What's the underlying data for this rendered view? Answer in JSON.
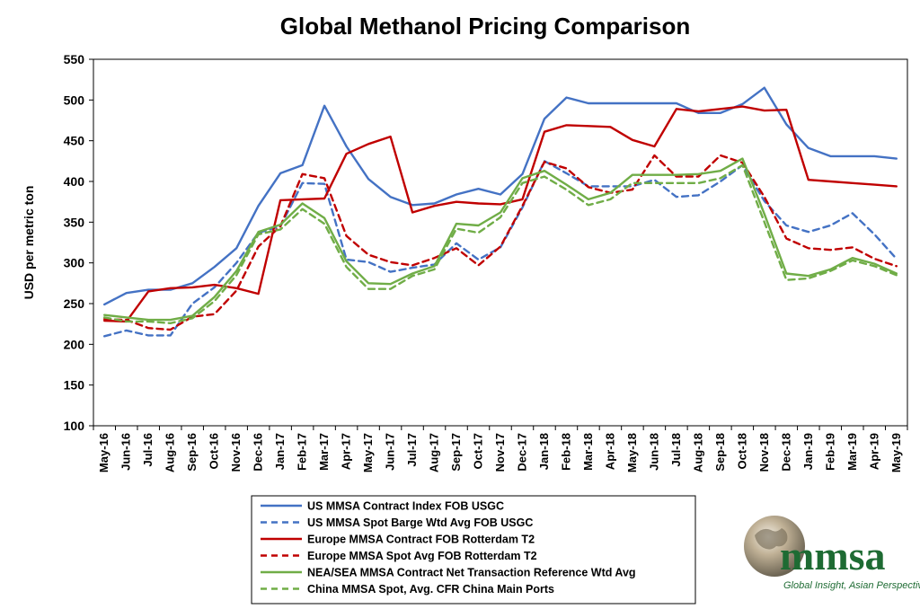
{
  "chart_data": {
    "type": "line",
    "title": "Global Methanol Pricing Comparison",
    "ylabel": "USD per metric ton",
    "xlabel": "",
    "ylim": [
      100,
      550
    ],
    "yticks": [
      100,
      150,
      200,
      250,
      300,
      350,
      400,
      450,
      500,
      550
    ],
    "grid": false,
    "legend_position": "bottom-center",
    "categories": [
      "May-16",
      "Jun-16",
      "Jul-16",
      "Aug-16",
      "Sep-16",
      "Oct-16",
      "Nov-16",
      "Dec-16",
      "Jan-17",
      "Feb-17",
      "Mar-17",
      "Apr-17",
      "May-17",
      "Jun-17",
      "Jul-17",
      "Aug-17",
      "Sep-17",
      "Oct-17",
      "Nov-17",
      "Dec-17",
      "Jan-18",
      "Feb-18",
      "Mar-18",
      "Apr-18",
      "May-18",
      "Jun-18",
      "Jul-18",
      "Aug-18",
      "Sep-18",
      "Oct-18",
      "Nov-18",
      "Dec-18",
      "Jan-19",
      "Feb-19",
      "Mar-19",
      "Apr-19",
      "May-19"
    ],
    "series": [
      {
        "name": "US MMSA Contract Index FOB USGC",
        "color": "#4472c4",
        "dash": "solid",
        "values": [
          249,
          263,
          267,
          267,
          275,
          295,
          318,
          370,
          410,
          420,
          493,
          443,
          403,
          381,
          371,
          373,
          384,
          391,
          384,
          409,
          477,
          503,
          496,
          496,
          496,
          496,
          496,
          484,
          484,
          495,
          515,
          470,
          441,
          431,
          431,
          431,
          428
        ]
      },
      {
        "name": "US MMSA Spot Barge Wtd Avg FOB USGC",
        "color": "#4472c4",
        "dash": "dashed",
        "values": [
          210,
          217,
          211,
          211,
          250,
          270,
          300,
          337,
          345,
          398,
          397,
          304,
          301,
          289,
          294,
          298,
          324,
          304,
          319,
          368,
          425,
          410,
          394,
          394,
          394,
          402,
          381,
          383,
          400,
          420,
          376,
          346,
          338,
          346,
          361,
          335,
          305
        ]
      },
      {
        "name": "Europe MMSA Contract FOB Rotterdam T2",
        "color": "#c00000",
        "dash": "solid",
        "values": [
          229,
          228,
          265,
          269,
          270,
          273,
          269,
          262,
          377,
          378,
          379,
          434,
          446,
          455,
          362,
          370,
          375,
          373,
          372,
          378,
          461,
          469,
          468,
          467,
          451,
          443,
          489,
          486,
          489,
          492,
          487,
          488,
          402,
          400,
          398,
          396,
          394
        ]
      },
      {
        "name": "Europe MMSA Spot Avg FOB Rotterdam T2",
        "color": "#c00000",
        "dash": "dashed",
        "values": [
          231,
          230,
          220,
          218,
          234,
          237,
          266,
          320,
          345,
          409,
          404,
          333,
          310,
          301,
          297,
          306,
          318,
          297,
          320,
          370,
          424,
          416,
          393,
          386,
          390,
          432,
          406,
          406,
          432,
          423,
          381,
          330,
          318,
          316,
          319,
          305,
          296
        ]
      },
      {
        "name": "NEA/SEA MMSA Contract Net Transaction Reference Wtd Avg",
        "color": "#70ad47",
        "dash": "solid",
        "values": [
          236,
          233,
          230,
          230,
          235,
          258,
          290,
          338,
          347,
          373,
          355,
          302,
          275,
          274,
          287,
          296,
          348,
          346,
          362,
          404,
          413,
          396,
          378,
          386,
          408,
          408,
          408,
          409,
          413,
          428,
          360,
          287,
          284,
          292,
          306,
          299,
          287
        ]
      },
      {
        "name": "China MMSA Spot, Avg. CFR China Main Ports",
        "color": "#70ad47",
        "dash": "dashed",
        "values": [
          233,
          228,
          228,
          226,
          232,
          253,
          285,
          335,
          341,
          366,
          348,
          295,
          268,
          268,
          284,
          292,
          342,
          337,
          356,
          398,
          406,
          390,
          371,
          378,
          398,
          398,
          398,
          398,
          404,
          420,
          350,
          279,
          281,
          290,
          303,
          296,
          285
        ]
      }
    ]
  },
  "logo": {
    "text": "mmsa",
    "tagline": "Global Insight, Asian Perspective™"
  }
}
